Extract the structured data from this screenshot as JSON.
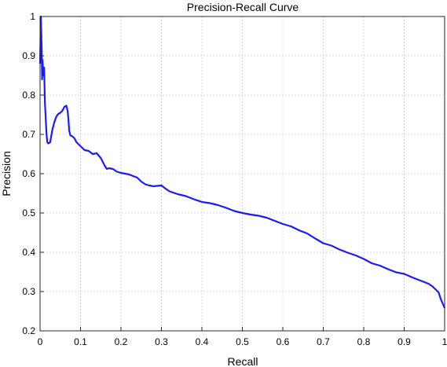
{
  "chart_data": {
    "type": "line",
    "title": "Precision-Recall Curve",
    "xlabel": "Recall",
    "ylabel": "Precision",
    "xlim": [
      0,
      1
    ],
    "ylim": [
      0.2,
      1
    ],
    "xticks": [
      "0",
      "0.1",
      "0.2",
      "0.3",
      "0.4",
      "0.5",
      "0.6",
      "0.7",
      "0.8",
      "0.9",
      "1"
    ],
    "yticks": [
      "0.2",
      "0.3",
      "0.4",
      "0.5",
      "0.6",
      "0.7",
      "0.8",
      "0.9",
      "1"
    ],
    "grid": true,
    "series": [
      {
        "color": "#1a1aff",
        "x": [
          0.0,
          0.002,
          0.003,
          0.004,
          0.005,
          0.006,
          0.008,
          0.01,
          0.012,
          0.014,
          0.016,
          0.018,
          0.02,
          0.022,
          0.025,
          0.03,
          0.035,
          0.04,
          0.045,
          0.05,
          0.055,
          0.06,
          0.065,
          0.068,
          0.07,
          0.072,
          0.075,
          0.08,
          0.085,
          0.09,
          0.1,
          0.11,
          0.12,
          0.13,
          0.14,
          0.15,
          0.16,
          0.165,
          0.17,
          0.18,
          0.19,
          0.2,
          0.22,
          0.24,
          0.25,
          0.26,
          0.27,
          0.28,
          0.3,
          0.31,
          0.32,
          0.34,
          0.36,
          0.38,
          0.4,
          0.42,
          0.44,
          0.46,
          0.48,
          0.5,
          0.52,
          0.54,
          0.56,
          0.58,
          0.6,
          0.62,
          0.64,
          0.66,
          0.68,
          0.7,
          0.72,
          0.74,
          0.76,
          0.78,
          0.8,
          0.82,
          0.84,
          0.86,
          0.88,
          0.9,
          0.92,
          0.94,
          0.96,
          0.97,
          0.98,
          0.985,
          0.99,
          0.995,
          1.0
        ],
        "y": [
          0.88,
          1.0,
          0.96,
          0.92,
          0.84,
          0.89,
          0.85,
          0.87,
          0.78,
          0.74,
          0.7,
          0.68,
          0.677,
          0.678,
          0.68,
          0.71,
          0.73,
          0.745,
          0.752,
          0.755,
          0.76,
          0.77,
          0.773,
          0.76,
          0.74,
          0.71,
          0.697,
          0.695,
          0.69,
          0.68,
          0.67,
          0.66,
          0.658,
          0.65,
          0.652,
          0.64,
          0.62,
          0.612,
          0.614,
          0.612,
          0.605,
          0.602,
          0.598,
          0.59,
          0.58,
          0.573,
          0.57,
          0.568,
          0.57,
          0.562,
          0.555,
          0.548,
          0.543,
          0.535,
          0.528,
          0.525,
          0.52,
          0.513,
          0.505,
          0.5,
          0.496,
          0.493,
          0.488,
          0.48,
          0.472,
          0.466,
          0.456,
          0.448,
          0.435,
          0.423,
          0.417,
          0.407,
          0.399,
          0.392,
          0.383,
          0.372,
          0.366,
          0.357,
          0.349,
          0.345,
          0.336,
          0.328,
          0.32,
          0.313,
          0.303,
          0.298,
          0.282,
          0.27,
          0.258
        ]
      }
    ]
  }
}
